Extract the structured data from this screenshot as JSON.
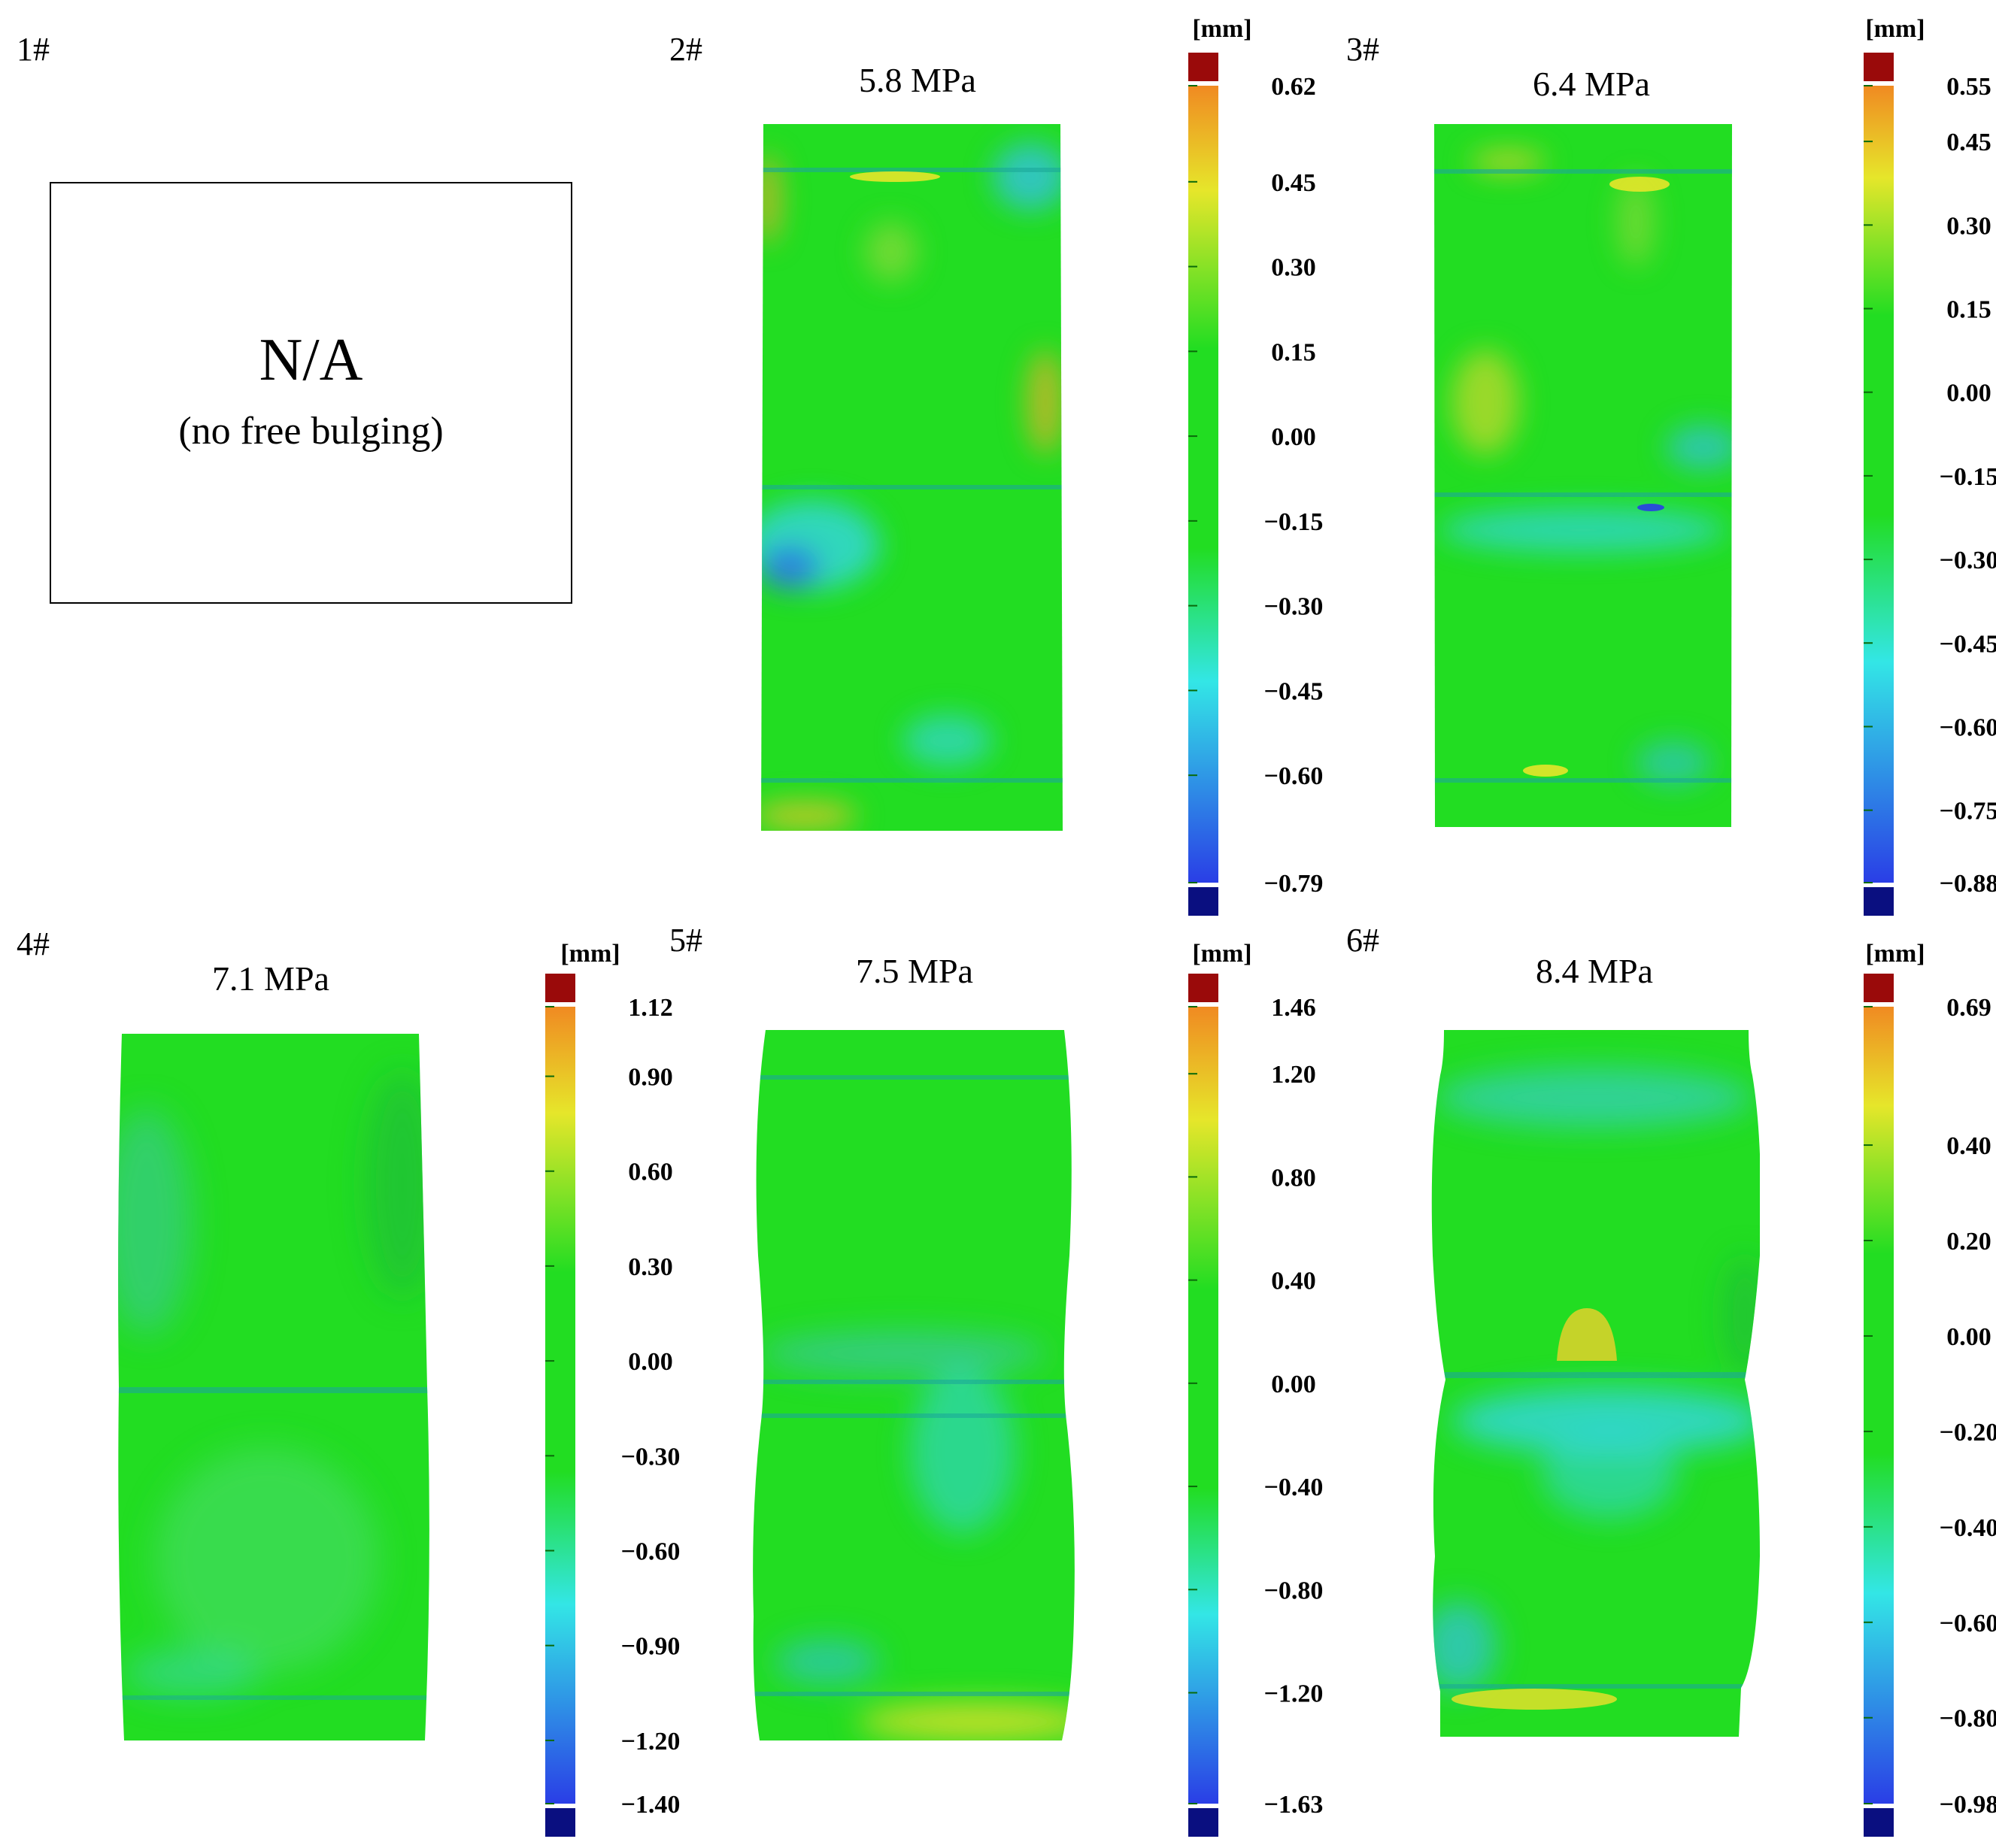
{
  "colors": {
    "surface_green": "#22dd22",
    "cyan": "#33e6e6",
    "yellow": "#e6e62a",
    "orange": "#f08a22",
    "blue": "#2a3ee6",
    "cap_red": "#9a0a0a",
    "cap_navy": "#0a0f80"
  },
  "unit": "[mm]",
  "panels": [
    {
      "id": "1#",
      "na": {
        "main": "N/A",
        "sub": "(no free bulging)"
      }
    },
    {
      "id": "2#",
      "pressure": "5.8 MPa",
      "colorbar": {
        "max": 0.62,
        "min": -0.79,
        "ticks": [
          "0.62",
          "0.45",
          "0.30",
          "0.15",
          "0.00",
          "−0.15",
          "−0.30",
          "−0.45",
          "−0.60",
          "−0.79"
        ]
      }
    },
    {
      "id": "3#",
      "pressure": "6.4 MPa",
      "colorbar": {
        "max": 0.55,
        "min": -0.88,
        "ticks": [
          "0.55",
          "0.45",
          "0.30",
          "0.15",
          "0.00",
          "−0.15",
          "−0.30",
          "−0.45",
          "−0.60",
          "−0.75",
          "−0.88"
        ]
      }
    },
    {
      "id": "4#",
      "pressure": "7.1 MPa",
      "colorbar": {
        "max": 1.12,
        "min": -1.4,
        "ticks": [
          "1.12",
          "0.90",
          "0.60",
          "0.30",
          "0.00",
          "−0.30",
          "−0.60",
          "−0.90",
          "−1.20",
          "−1.40"
        ]
      }
    },
    {
      "id": "5#",
      "pressure": "7.5 MPa",
      "colorbar": {
        "max": 1.46,
        "min": -1.63,
        "ticks": [
          "1.46",
          "1.20",
          "0.80",
          "0.40",
          "0.00",
          "−0.40",
          "−0.80",
          "−1.20",
          "−1.63"
        ]
      }
    },
    {
      "id": "6#",
      "pressure": "8.4 MPa",
      "colorbar": {
        "max": 0.69,
        "min": -0.98,
        "ticks": [
          "0.69",
          "0.40",
          "0.20",
          "0.00",
          "−0.20",
          "−0.40",
          "−0.60",
          "−0.80",
          "−0.98"
        ]
      }
    }
  ]
}
